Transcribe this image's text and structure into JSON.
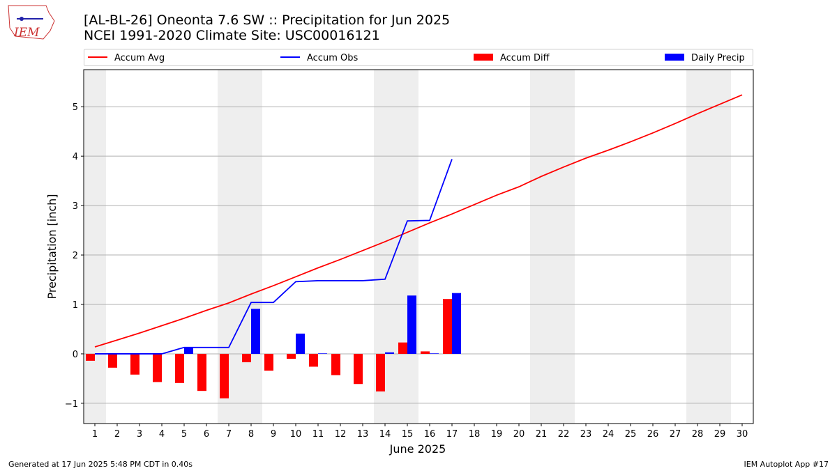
{
  "chart_data": {
    "type": "combo",
    "title": "[AL-BL-26] Oneonta 7.6 SW :: Precipitation for Jun 2025",
    "subtitle": "NCEI 1991-2020 Climate Site: USC00016121",
    "logo_text": "IEM",
    "x_label": "June 2025",
    "y_label": "Precipitation [inch]",
    "footer_left": "Generated at 17 Jun 2025 5:48 PM CDT in 0.40s",
    "footer_right": "IEM Autoplot App #17",
    "x": [
      1,
      2,
      3,
      4,
      5,
      6,
      7,
      8,
      9,
      10,
      11,
      12,
      13,
      14,
      15,
      16,
      17,
      18,
      19,
      20,
      21,
      22,
      23,
      24,
      25,
      26,
      27,
      28,
      29,
      30
    ],
    "xlim": [
      0.5,
      30.5
    ],
    "xticks": [
      1,
      2,
      3,
      4,
      5,
      6,
      7,
      8,
      9,
      10,
      11,
      12,
      13,
      14,
      15,
      16,
      17,
      18,
      19,
      20,
      21,
      22,
      23,
      24,
      25,
      26,
      27,
      28,
      29,
      30
    ],
    "ylim": [
      -1.41,
      5.75
    ],
    "yticks": [
      {
        "value": -1,
        "label": "−1"
      },
      0,
      1,
      2,
      3,
      4,
      5
    ],
    "grid": true,
    "shaded_days": [
      1,
      7,
      8,
      14,
      15,
      21,
      22,
      28,
      29
    ],
    "series": [
      {
        "name": "Accum Avg",
        "type": "line",
        "color": "#ff0000",
        "values": [
          0.14,
          0.28,
          0.42,
          0.57,
          0.72,
          0.88,
          1.03,
          1.21,
          1.38,
          1.56,
          1.74,
          1.91,
          2.09,
          2.27,
          2.46,
          2.65,
          2.83,
          3.02,
          3.21,
          3.38,
          3.59,
          3.78,
          3.96,
          4.12,
          4.29,
          4.47,
          4.66,
          4.86,
          5.05,
          5.24
        ]
      },
      {
        "name": "Accum Obs",
        "type": "line",
        "color": "#0000ff",
        "values": [
          0,
          0,
          0,
          0,
          0.13,
          0.13,
          0.13,
          1.04,
          1.04,
          1.46,
          1.48,
          1.48,
          1.48,
          1.51,
          2.69,
          2.7,
          3.94,
          null,
          null,
          null,
          null,
          null,
          null,
          null,
          null,
          null,
          null,
          null,
          null,
          null
        ]
      },
      {
        "name": "Accum Diff",
        "type": "bar",
        "color": "#ff0000",
        "values": [
          -0.14,
          -0.28,
          -0.42,
          -0.57,
          -0.59,
          -0.75,
          -0.9,
          -0.17,
          -0.34,
          -0.1,
          -0.26,
          -0.43,
          -0.61,
          -0.76,
          0.23,
          0.05,
          1.11,
          null,
          null,
          null,
          null,
          null,
          null,
          null,
          null,
          null,
          null,
          null,
          null,
          null
        ]
      },
      {
        "name": "Daily Precip",
        "type": "bar",
        "color": "#0000ff",
        "values": [
          0,
          0,
          0,
          0,
          0.13,
          0,
          0,
          0.91,
          0,
          0.41,
          0.01,
          0,
          0,
          0.03,
          1.18,
          0.01,
          1.23,
          null,
          null,
          null,
          null,
          null,
          null,
          null,
          null,
          null,
          null,
          null,
          null,
          null
        ]
      }
    ]
  }
}
